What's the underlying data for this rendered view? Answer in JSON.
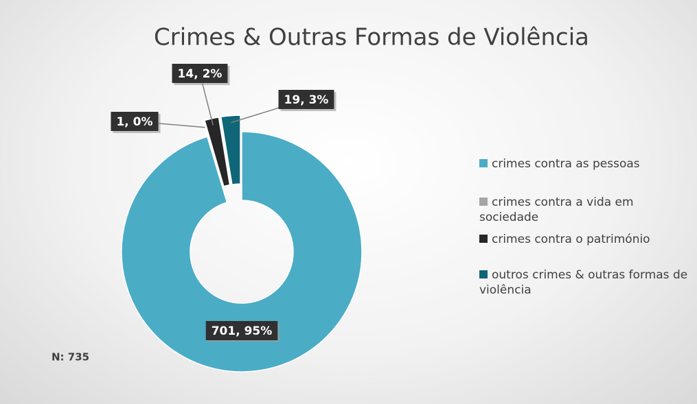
{
  "chart_data": {
    "type": "pie",
    "donut": true,
    "title": "Crimes & Outras Formas de Violência",
    "labels": [
      "crimes contra as pessoas",
      "crimes contra a vida em sociedade",
      "crimes contra o património",
      "outros crimes & outras formas de violência"
    ],
    "values": [
      701,
      1,
      14,
      19
    ],
    "value_labels": [
      "701, 95%",
      "1, 0%",
      "14, 2%",
      "19, 3%"
    ],
    "colors": [
      "#4bacc6",
      "#a5a5a5",
      "#262626",
      "#0f6678"
    ],
    "legend": "right",
    "annotation": "N: 735"
  }
}
